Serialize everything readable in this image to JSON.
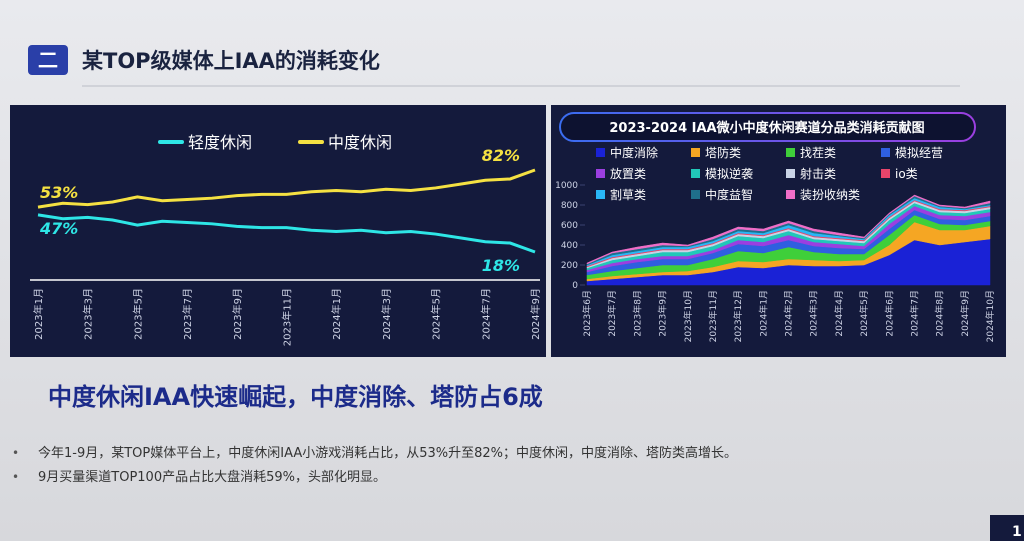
{
  "slide": {
    "badge": "二",
    "title": "某TOP级媒体上IAA的消耗变化",
    "headline": "中度休闲IAA快速崛起，中度消除、塔防占6成",
    "bullets": [
      "今年1-9月，某TOP媒体平台上，中度休闲IAA小游戏消耗占比，从53%升至82%；中度休闲，中度消除、塔防类高增长。",
      "9月买量渠道TOP100产品占比大盘消耗59%，头部化明显。"
    ],
    "page_number": "1"
  },
  "chart_data": [
    {
      "type": "line",
      "categories": [
        "2023年1月",
        null,
        "2023年3月",
        null,
        "2023年5月",
        null,
        "2023年7月",
        null,
        "2023年9月",
        null,
        "2023年11月",
        null,
        "2024年1月",
        null,
        "2024年3月",
        null,
        "2024年5月",
        null,
        "2024年7月",
        null,
        "2024年9月"
      ],
      "series": [
        {
          "name": "轻度休闲",
          "color": "#2ee6e6",
          "values": [
            47,
            44,
            45,
            43,
            39,
            42,
            41,
            40,
            38,
            37,
            37,
            35,
            34,
            35,
            33,
            34,
            32,
            29,
            26,
            25,
            18
          ],
          "value_labels": [
            "47%",
            null,
            null,
            null,
            null,
            null,
            null,
            null,
            null,
            null,
            null,
            null,
            null,
            null,
            null,
            null,
            null,
            null,
            null,
            null,
            "18%"
          ]
        },
        {
          "name": "中度休闲",
          "color": "#f5e142",
          "values": [
            53,
            56,
            55,
            57,
            61,
            58,
            59,
            60,
            62,
            63,
            63,
            65,
            66,
            65,
            67,
            66,
            68,
            71,
            74,
            75,
            82
          ],
          "value_labels": [
            "53%",
            null,
            null,
            null,
            null,
            null,
            null,
            null,
            null,
            null,
            null,
            null,
            null,
            null,
            null,
            null,
            null,
            null,
            null,
            null,
            "82%"
          ]
        }
      ]
    },
    {
      "type": "stacked-area",
      "title": "2023-2024 IAA微小中度休闲赛道分品类消耗贡献图",
      "categories": [
        "2023年6月",
        "2023年7月",
        "2023年8月",
        "2023年9月",
        "2023年10月",
        "2023年11月",
        "2023年12月",
        "2024年1月",
        "2024年2月",
        "2024年3月",
        "2024年4月",
        "2024年5月",
        "2024年6月",
        "2024年7月",
        "2024年8月",
        "2024年9月",
        "2024年10月"
      ],
      "ylim": [
        0,
        1000
      ],
      "yticks": [
        0,
        200,
        400,
        600,
        800,
        1000
      ],
      "series": [
        {
          "name": "中度消除",
          "color": "#1a22d6",
          "values": [
            40,
            60,
            80,
            100,
            100,
            130,
            180,
            170,
            200,
            190,
            190,
            200,
            300,
            450,
            400,
            430,
            460
          ]
        },
        {
          "name": "塔防类",
          "color": "#f5a623",
          "values": [
            20,
            30,
            30,
            30,
            40,
            50,
            60,
            60,
            60,
            60,
            50,
            50,
            100,
            180,
            150,
            120,
            130
          ]
        },
        {
          "name": "找茬类",
          "color": "#3fcf3a",
          "values": [
            40,
            50,
            60,
            70,
            60,
            80,
            100,
            90,
            120,
            80,
            70,
            60,
            100,
            70,
            60,
            50,
            50
          ]
        },
        {
          "name": "模拟经营",
          "color": "#2f5fe0",
          "values": [
            30,
            50,
            60,
            60,
            60,
            60,
            70,
            70,
            70,
            60,
            60,
            50,
            60,
            50,
            50,
            50,
            50
          ]
        },
        {
          "name": "放置类",
          "color": "#9b3fe0",
          "values": [
            20,
            30,
            30,
            30,
            30,
            30,
            40,
            40,
            50,
            40,
            40,
            30,
            50,
            40,
            40,
            40,
            40
          ]
        },
        {
          "name": "模拟逆袭",
          "color": "#21c7b8",
          "values": [
            20,
            30,
            30,
            40,
            40,
            40,
            40,
            40,
            40,
            30,
            30,
            30,
            40,
            30,
            30,
            30,
            30
          ]
        },
        {
          "name": "射击类",
          "color": "#c9d3e6",
          "values": [
            10,
            20,
            20,
            20,
            20,
            20,
            20,
            20,
            20,
            20,
            20,
            20,
            20,
            20,
            20,
            20,
            20
          ]
        },
        {
          "name": "io类",
          "color": "#e8456b",
          "values": [
            10,
            10,
            10,
            10,
            10,
            10,
            10,
            10,
            10,
            10,
            10,
            10,
            10,
            10,
            10,
            10,
            10
          ]
        },
        {
          "name": "割草类",
          "color": "#29b6f6",
          "values": [
            10,
            20,
            20,
            20,
            20,
            20,
            20,
            20,
            30,
            30,
            20,
            10,
            20,
            20,
            20,
            10,
            10
          ]
        },
        {
          "name": "中度益智",
          "color": "#1f6f8b",
          "values": [
            10,
            20,
            20,
            20,
            10,
            20,
            20,
            20,
            20,
            20,
            10,
            10,
            10,
            20,
            10,
            10,
            20
          ]
        },
        {
          "name": "装扮收纳类",
          "color": "#f06ec8",
          "values": [
            10,
            10,
            20,
            20,
            10,
            20,
            20,
            20,
            20,
            20,
            20,
            10,
            10,
            10,
            10,
            10,
            20
          ]
        }
      ]
    }
  ]
}
